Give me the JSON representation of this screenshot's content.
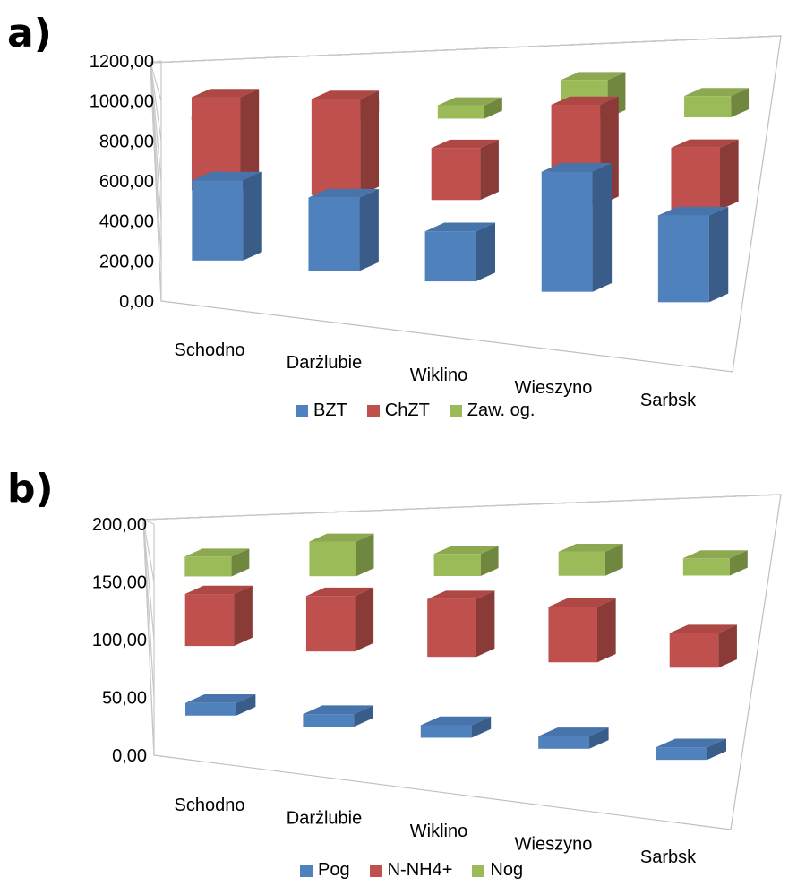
{
  "chart_data": [
    {
      "type": "bar",
      "panel_label": "a)",
      "categories": [
        "Schodno",
        "Darżlubie",
        "Wiklino",
        "Wieszyno",
        "Sarbsk"
      ],
      "series": [
        {
          "name": "BZT",
          "color": "#4F81BD",
          "values": [
            480,
            440,
            300,
            720,
            520
          ]
        },
        {
          "name": "ChZT",
          "color": "#C0504D",
          "values": [
            930,
            960,
            520,
            1000,
            620
          ]
        },
        {
          "name": "Zaw. og.",
          "color": "#9BBB59",
          "values": [
            40,
            330,
            400,
            1140,
            640
          ]
        }
      ],
      "yticks": [
        "0,00",
        "200,00",
        "400,00",
        "600,00",
        "800,00",
        "1000,00",
        "1200,00"
      ],
      "ylim": [
        0,
        1200
      ],
      "legend": "bottom",
      "grid": true
    },
    {
      "type": "bar",
      "panel_label": "b)",
      "categories": [
        "Schodno",
        "Darżlubie",
        "Wiklino",
        "Wieszyno",
        "Sarbsk"
      ],
      "series": [
        {
          "name": "Pog",
          "color": "#4F81BD",
          "values": [
            5,
            6,
            8,
            12,
            8
          ]
        },
        {
          "name": "N-NH4+",
          "color": "#C0504D",
          "values": [
            90,
            96,
            100,
            96,
            60
          ]
        },
        {
          "name": "Nog",
          "color": "#9BBB59",
          "values": [
            103,
            180,
            115,
            125,
            90
          ]
        }
      ],
      "yticks": [
        "0,00",
        "50,00",
        "100,00",
        "150,00",
        "200,00"
      ],
      "ylim": [
        0,
        200
      ],
      "legend": "bottom",
      "grid": true
    }
  ]
}
